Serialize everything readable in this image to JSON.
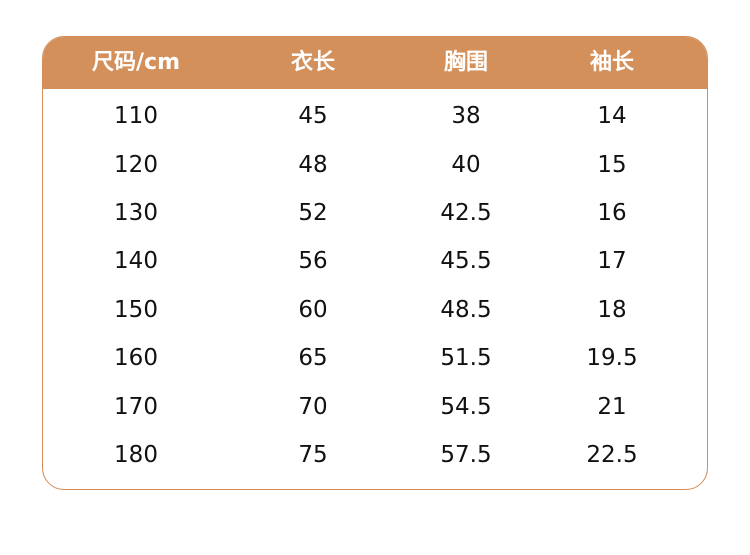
{
  "header": [
    "尺码/cm",
    "衣长",
    "胸围",
    "袖长"
  ],
  "rows": [
    [
      "110",
      "45",
      "38",
      "14"
    ],
    [
      "120",
      "48",
      "40",
      "15"
    ],
    [
      "130",
      "52",
      "42.5",
      "16"
    ],
    [
      "140",
      "56",
      "45.5",
      "17"
    ],
    [
      "150",
      "60",
      "48.5",
      "18"
    ],
    [
      "160",
      "65",
      "51.5",
      "19.5"
    ],
    [
      "170",
      "70",
      "54.5",
      "21"
    ],
    [
      "180",
      "75",
      "57.5",
      "22.5"
    ]
  ],
  "colors": {
    "header_bg": "#d4905b",
    "border": "#d38e5a",
    "header_text": "#ffffff"
  }
}
